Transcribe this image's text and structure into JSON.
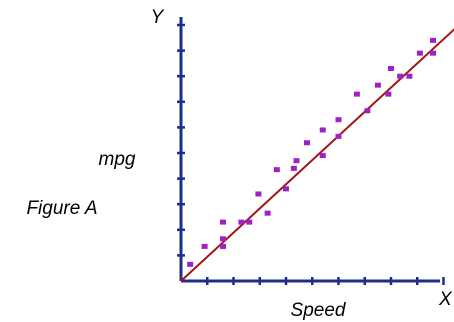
{
  "chart_data": {
    "type": "scatter",
    "title": "",
    "figure_label": "Figure A",
    "xlabel": "Speed",
    "ylabel": "mpg",
    "x_axis_name": "X",
    "y_axis_name": "Y",
    "xlim": [
      0,
      12
    ],
    "ylim": [
      0,
      10
    ],
    "x_ticks": [
      1,
      2,
      3,
      4,
      5,
      6,
      7,
      8,
      9,
      10,
      11,
      12
    ],
    "y_ticks": [
      1,
      2,
      3,
      4,
      5,
      6,
      7,
      8,
      9,
      10
    ],
    "tick_labels_shown": false,
    "grid": false,
    "legend": "none",
    "colors": {
      "axes": "#1b2f8a",
      "points": "#a020c8",
      "trend_line": "#a31515",
      "text": "#000000"
    },
    "points": [
      {
        "x": 0.35,
        "y": 0.65
      },
      {
        "x": 0.9,
        "y": 1.35
      },
      {
        "x": 1.6,
        "y": 1.35
      },
      {
        "x": 1.6,
        "y": 1.65
      },
      {
        "x": 1.6,
        "y": 2.3
      },
      {
        "x": 2.3,
        "y": 2.3
      },
      {
        "x": 2.6,
        "y": 2.3
      },
      {
        "x": 2.95,
        "y": 3.4
      },
      {
        "x": 3.3,
        "y": 2.65
      },
      {
        "x": 3.65,
        "y": 4.35
      },
      {
        "x": 4.0,
        "y": 3.6
      },
      {
        "x": 4.3,
        "y": 4.4
      },
      {
        "x": 4.4,
        "y": 4.7
      },
      {
        "x": 4.8,
        "y": 5.4
      },
      {
        "x": 5.4,
        "y": 4.9
      },
      {
        "x": 5.4,
        "y": 5.9
      },
      {
        "x": 6.0,
        "y": 5.65
      },
      {
        "x": 6.0,
        "y": 6.3
      },
      {
        "x": 6.7,
        "y": 7.3
      },
      {
        "x": 7.1,
        "y": 6.65
      },
      {
        "x": 7.5,
        "y": 7.65
      },
      {
        "x": 7.9,
        "y": 7.3
      },
      {
        "x": 8.0,
        "y": 8.3
      },
      {
        "x": 8.35,
        "y": 8.0
      },
      {
        "x": 8.7,
        "y": 8.0
      },
      {
        "x": 9.1,
        "y": 8.9
      },
      {
        "x": 9.6,
        "y": 9.4
      },
      {
        "x": 9.6,
        "y": 8.9
      }
    ],
    "trend_line": [
      {
        "x": 0,
        "y": 0
      },
      {
        "x": 10.8,
        "y": 10.2
      }
    ]
  }
}
